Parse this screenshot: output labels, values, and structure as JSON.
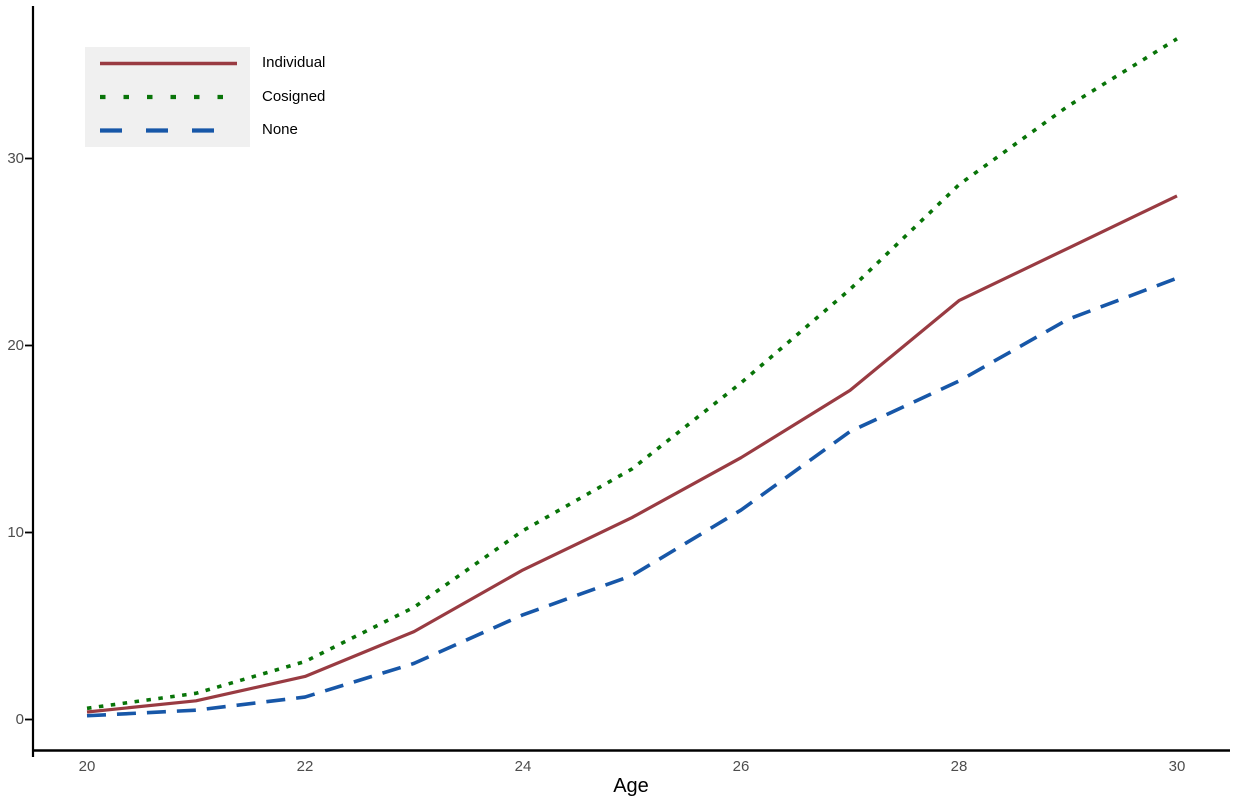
{
  "chart_data": {
    "type": "line",
    "title": "",
    "xlabel": "Age",
    "ylabel": "",
    "x": [
      20,
      21,
      22,
      23,
      24,
      25,
      26,
      27,
      28,
      29,
      30
    ],
    "x_ticks": [
      20,
      22,
      24,
      26,
      28,
      30
    ],
    "y_ticks": [
      0,
      10,
      20,
      30
    ],
    "xlim": [
      20,
      30
    ],
    "ylim": [
      0,
      37
    ],
    "grid": false,
    "legend_position": "top-left",
    "series": [
      {
        "name": "Individual",
        "color": "#993b42",
        "line_style": "solid",
        "values": [
          0.4,
          1.0,
          2.3,
          4.7,
          8.0,
          10.8,
          14.0,
          17.6,
          22.4,
          25.2,
          28.0
        ]
      },
      {
        "name": "Cosigned",
        "color": "#087408",
        "line_style": "dotted",
        "values": [
          0.6,
          1.4,
          3.1,
          6.0,
          10.1,
          13.4,
          18.0,
          23.0,
          28.6,
          32.8,
          36.4
        ]
      },
      {
        "name": "None",
        "color": "#1757a8",
        "line_style": "dashed",
        "values": [
          0.2,
          0.5,
          1.2,
          3.0,
          5.6,
          7.7,
          11.2,
          15.4,
          18.1,
          21.4,
          23.6
        ]
      }
    ],
    "colors": {
      "axis": "#000000",
      "tick_label": "#4d4d4d",
      "legend_bg": "#f0f0f0",
      "background": "#ffffff"
    }
  }
}
